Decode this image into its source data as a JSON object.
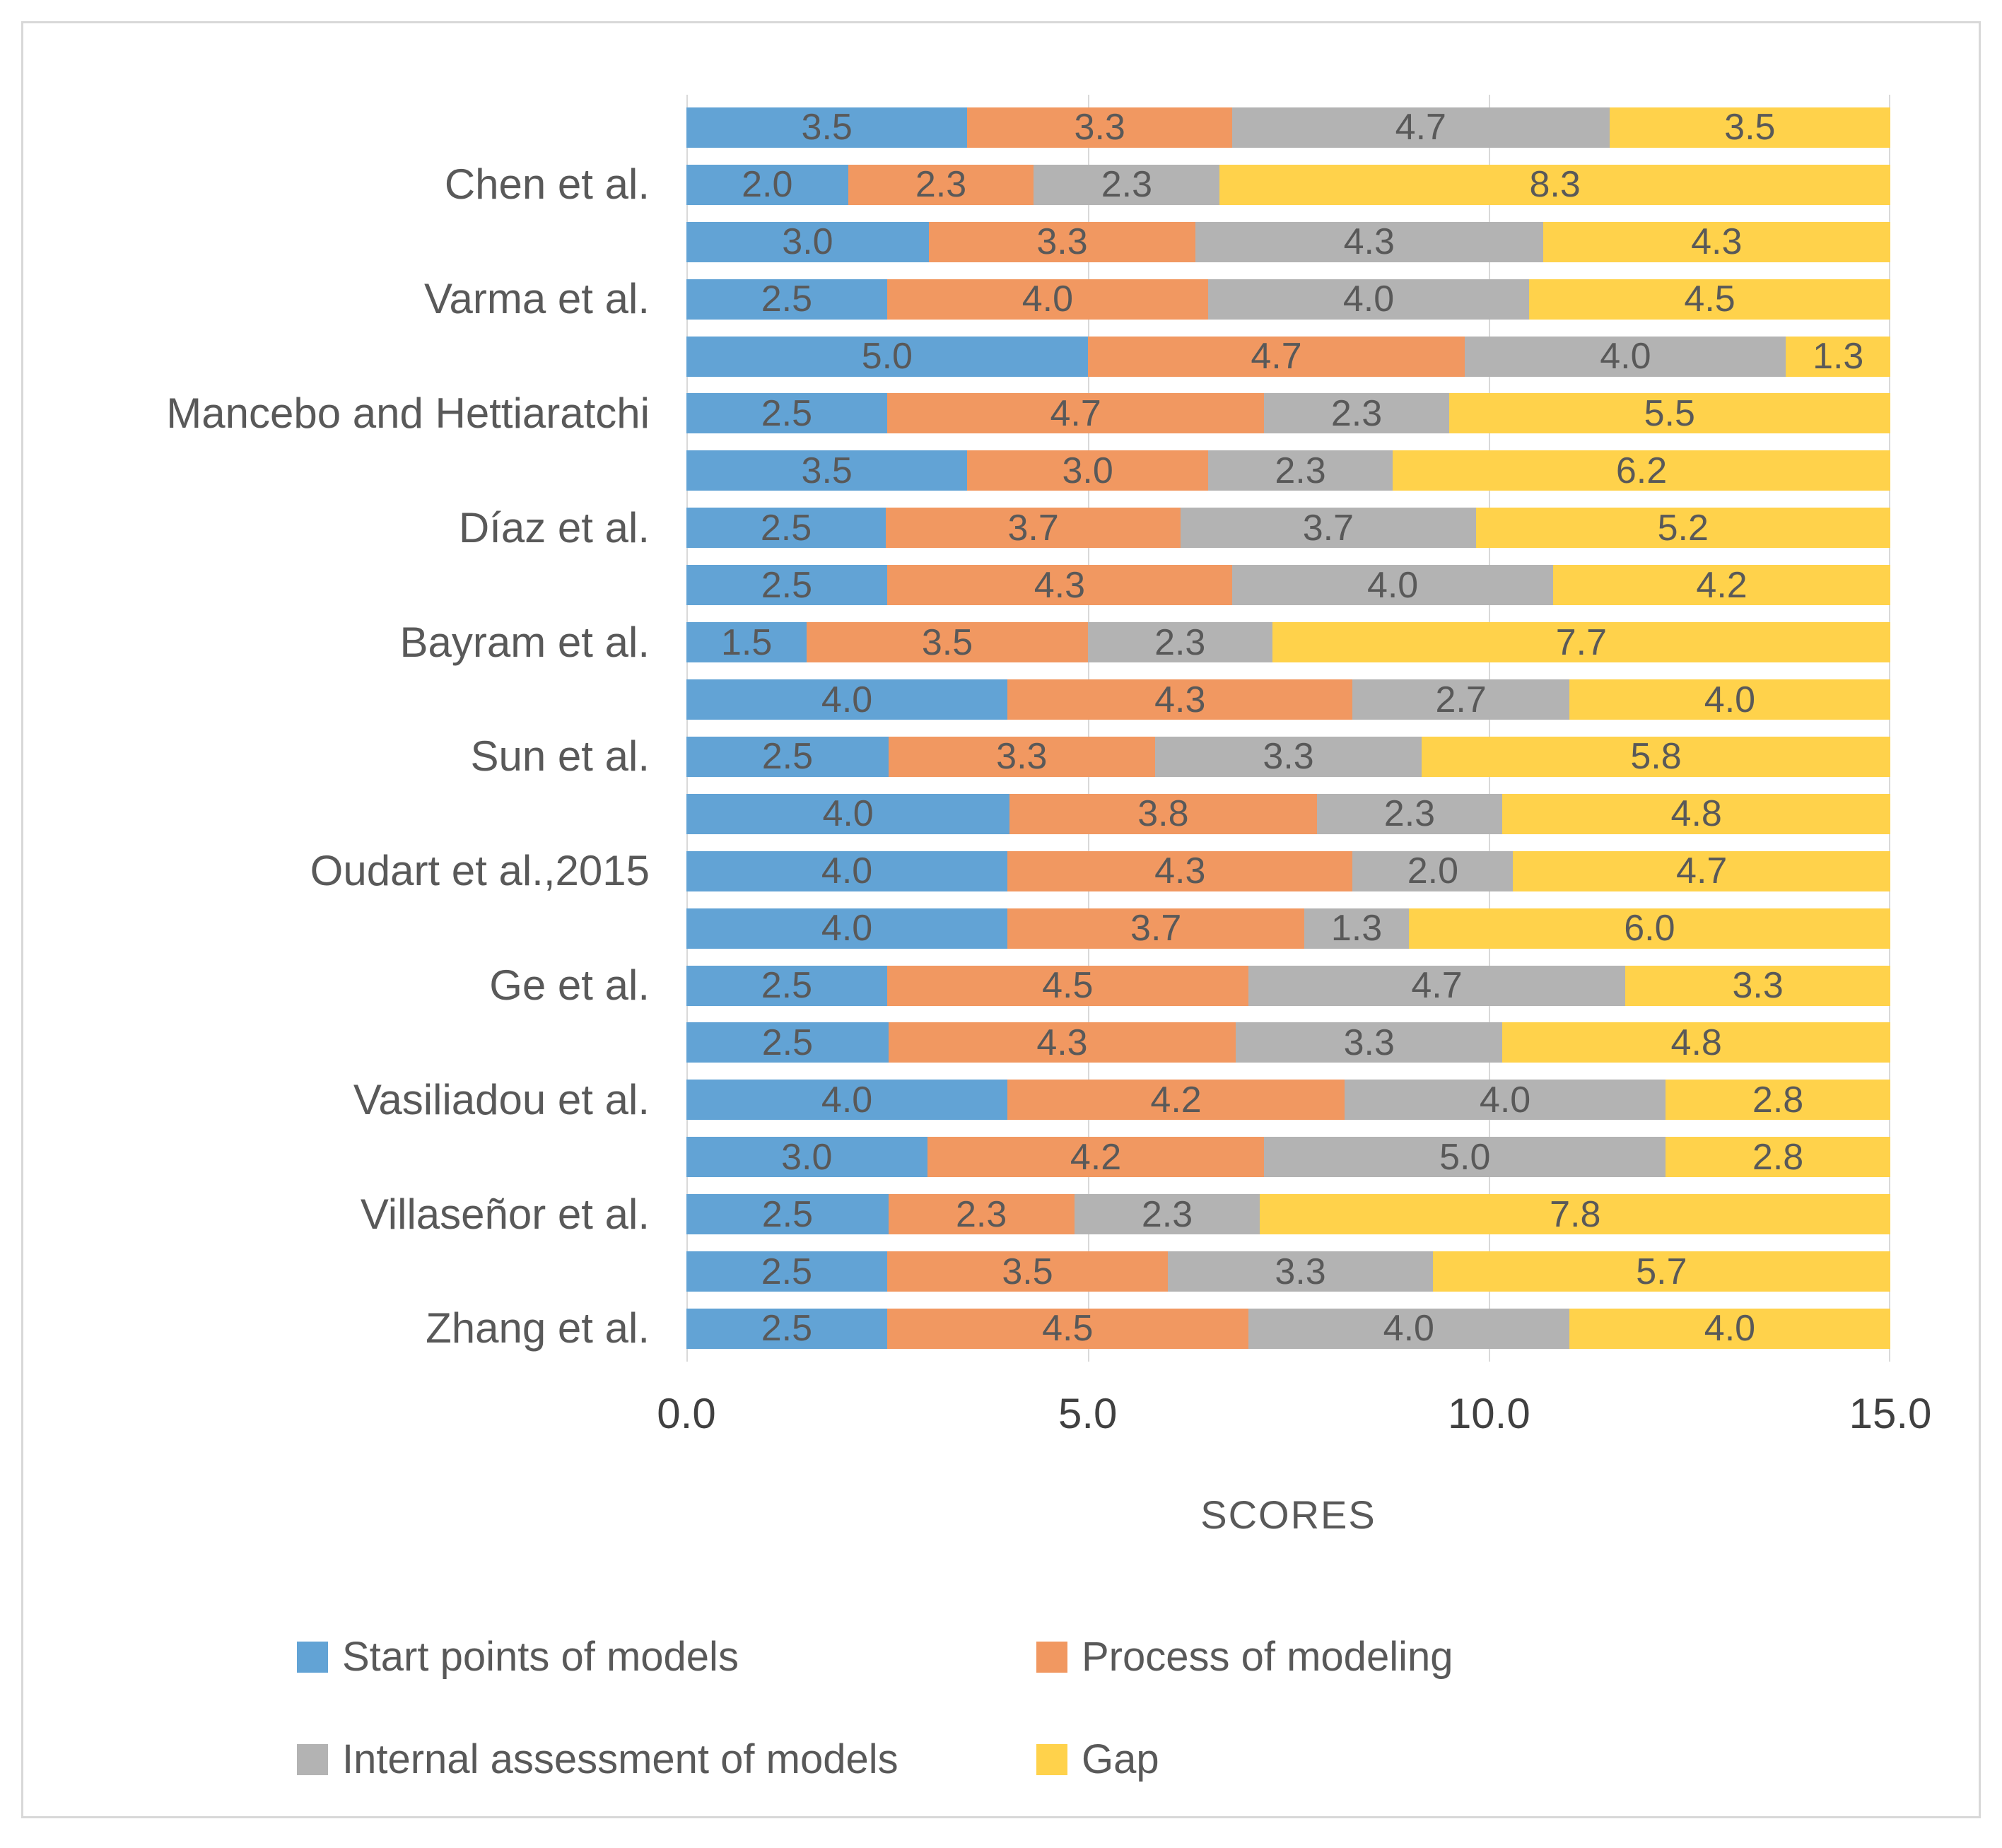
{
  "chart_data": {
    "type": "bar",
    "orientation": "horizontal-stacked",
    "title": "",
    "xlabel": "SCORES",
    "x_range": [
      0.0,
      15.0
    ],
    "x_ticks": [
      "0.0",
      "5.0",
      "10.0",
      "15.0"
    ],
    "grid": "vertical-major",
    "legend_position": "bottom",
    "legend": [
      {
        "label": "Start points of models",
        "color": "#62a3d5"
      },
      {
        "label": "Process of modeling",
        "color": "#f19861"
      },
      {
        "label": "Internal assessment of models",
        "color": "#b3b3b3"
      },
      {
        "label": "Gap",
        "color": "#ffd24b"
      }
    ],
    "series_names": [
      "Start points of models",
      "Process of modeling",
      "Internal assessment of models",
      "Gap"
    ],
    "rows": [
      {
        "label": "",
        "values": [
          3.5,
          3.3,
          4.7,
          3.5
        ]
      },
      {
        "label": "Chen et al.",
        "values": [
          2.0,
          2.3,
          2.3,
          8.3
        ]
      },
      {
        "label": "",
        "values": [
          3.0,
          3.3,
          4.3,
          4.3
        ]
      },
      {
        "label": "Varma et al.",
        "values": [
          2.5,
          4.0,
          4.0,
          4.5
        ]
      },
      {
        "label": "",
        "values": [
          5.0,
          4.7,
          4.0,
          1.3
        ]
      },
      {
        "label": "Mancebo and Hettiaratchi",
        "values": [
          2.5,
          4.7,
          2.3,
          5.5
        ]
      },
      {
        "label": "",
        "values": [
          3.5,
          3.0,
          2.3,
          6.2
        ]
      },
      {
        "label": "Díaz et al.",
        "values": [
          2.5,
          3.7,
          3.7,
          5.2
        ]
      },
      {
        "label": "",
        "values": [
          2.5,
          4.3,
          4.0,
          4.2
        ]
      },
      {
        "label": "Bayram et al.",
        "values": [
          1.5,
          3.5,
          2.3,
          7.7
        ]
      },
      {
        "label": "",
        "values": [
          4.0,
          4.3,
          2.7,
          4.0
        ]
      },
      {
        "label": "Sun et al.",
        "values": [
          2.5,
          3.3,
          3.3,
          5.8
        ]
      },
      {
        "label": "",
        "values": [
          4.0,
          3.8,
          2.3,
          4.8
        ]
      },
      {
        "label": "Oudart et al.,2015",
        "values": [
          4.0,
          4.3,
          2.0,
          4.7
        ]
      },
      {
        "label": "",
        "values": [
          4.0,
          3.7,
          1.3,
          6.0
        ]
      },
      {
        "label": "Ge et al.",
        "values": [
          2.5,
          4.5,
          4.7,
          3.3
        ]
      },
      {
        "label": "",
        "values": [
          2.5,
          4.3,
          3.3,
          4.8
        ]
      },
      {
        "label": "Vasiliadou et al.",
        "values": [
          4.0,
          4.2,
          4.0,
          2.8
        ]
      },
      {
        "label": "",
        "values": [
          3.0,
          4.2,
          5.0,
          2.8
        ]
      },
      {
        "label": "Villaseñor et al.",
        "values": [
          2.5,
          2.3,
          2.3,
          7.8
        ]
      },
      {
        "label": "",
        "values": [
          2.5,
          3.5,
          3.3,
          5.7
        ]
      },
      {
        "label": "Zhang et al.",
        "values": [
          2.5,
          4.5,
          4.0,
          4.0
        ]
      }
    ],
    "colors": {
      "start_points": "#62a3d5",
      "process": "#f19861",
      "internal_assessment": "#b3b3b3",
      "gap": "#ffd24b",
      "gridline": "#d9d9d9",
      "frame_border": "#d8d8d8",
      "label_text": "#595959",
      "axis_text": "#404040"
    }
  }
}
